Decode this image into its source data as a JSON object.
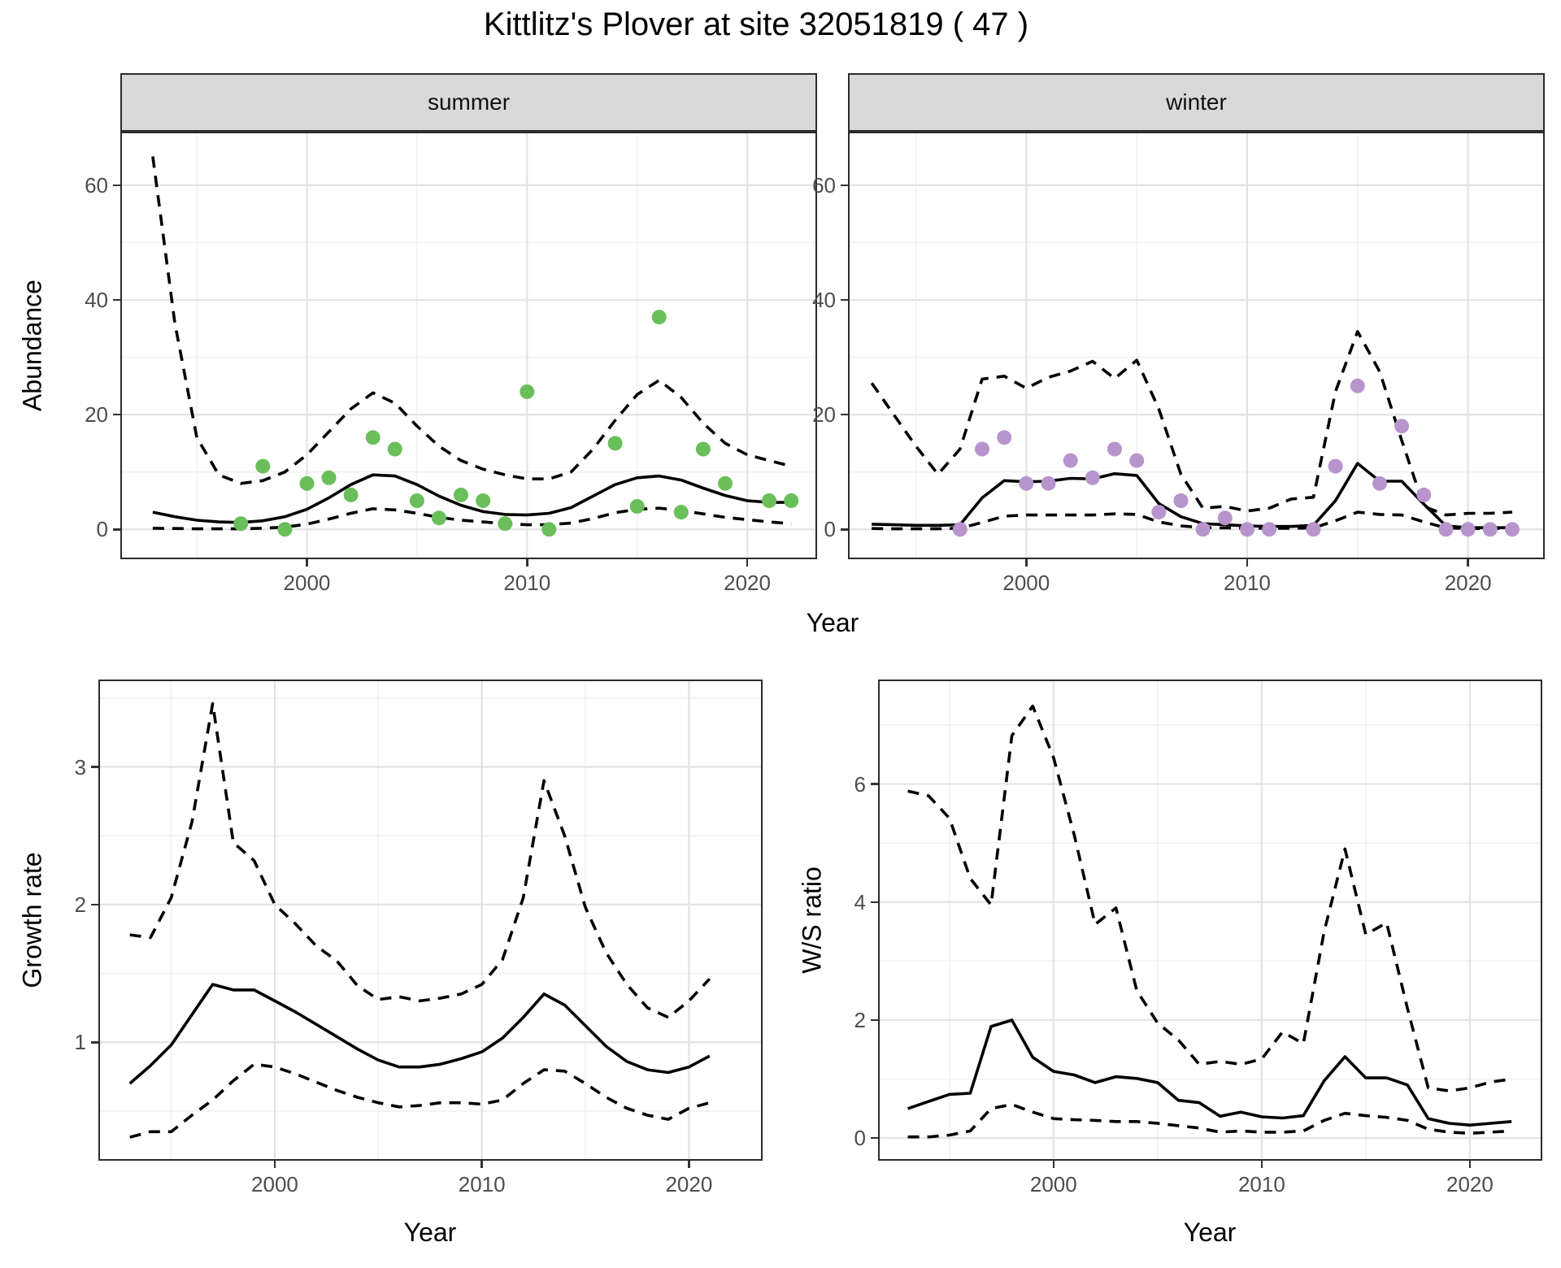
{
  "title": "Kittlitz's Plover at site 32051819 ( 47 )",
  "facets": {
    "summer": "summer",
    "winter": "winter"
  },
  "axes": {
    "abundance_y_label": "Abundance",
    "top_x_label": "Year",
    "growth_y_label": "Growth rate",
    "growth_x_label": "Year",
    "ws_y_label": "W/S ratio",
    "ws_x_label": "Year"
  },
  "colors": {
    "summer_points": "#6abf5a",
    "winter_points": "#b894cd",
    "line": "#000000",
    "strip_bg": "#d9d9d9",
    "axis_text": "#4d4d4d"
  },
  "chart_data": [
    {
      "panel_id": "panel-abundance-summer",
      "type": "line",
      "facet": "summer",
      "ylabel": "Abundance",
      "xlabel": "Year",
      "x_range": [
        1991.6,
        2023.1
      ],
      "y_range": [
        -4.92,
        69.04
      ],
      "x_major": [
        2000,
        2010,
        2020
      ],
      "x_minor": [
        1995,
        2005,
        2015
      ],
      "y_major": [
        0,
        20,
        40,
        60
      ],
      "y_minor": [
        10,
        30,
        50
      ],
      "x_tick_labels": [
        "2000",
        "2010",
        "2020"
      ],
      "y_tick_labels": [
        "0",
        "20",
        "40",
        "60"
      ],
      "series": [
        {
          "name": "upper-ci",
          "style": "dashed",
          "x": [
            1993,
            1994,
            1995,
            1996,
            1997,
            1998,
            1999,
            2000,
            2001,
            2002,
            2003,
            2004,
            2005,
            2006,
            2007,
            2008,
            2009,
            2010,
            2011,
            2012,
            2013,
            2014,
            2015,
            2016,
            2017,
            2018,
            2019,
            2020,
            2021,
            2022
          ],
          "y": [
            65,
            36,
            16,
            9.5,
            8,
            8.5,
            10,
            13,
            17,
            21,
            23.8,
            22,
            18,
            14.5,
            12,
            10.5,
            9.5,
            8.8,
            8.8,
            10,
            14,
            19,
            23.5,
            26,
            23,
            18.5,
            15,
            13,
            12,
            11
          ]
        },
        {
          "name": "mean",
          "style": "solid",
          "x": [
            1993,
            1994,
            1995,
            1996,
            1997,
            1998,
            1999,
            2000,
            2001,
            2002,
            2003,
            2004,
            2005,
            2006,
            2007,
            2008,
            2009,
            2010,
            2011,
            2012,
            2013,
            2014,
            2015,
            2016,
            2017,
            2018,
            2019,
            2020,
            2021,
            2022
          ],
          "y": [
            3,
            2.2,
            1.6,
            1.3,
            1.2,
            1.5,
            2.2,
            3.5,
            5.5,
            7.8,
            9.5,
            9.3,
            7.8,
            5.8,
            4.2,
            3.1,
            2.6,
            2.5,
            2.8,
            3.8,
            5.8,
            7.8,
            9,
            9.3,
            8.6,
            7.2,
            5.9,
            5,
            4.7,
            4.7
          ]
        },
        {
          "name": "lower-ci",
          "style": "dashed",
          "x": [
            1993,
            1994,
            1995,
            1996,
            1997,
            1998,
            1999,
            2000,
            2001,
            2002,
            2003,
            2004,
            2005,
            2006,
            2007,
            2008,
            2009,
            2010,
            2011,
            2012,
            2013,
            2014,
            2015,
            2016,
            2017,
            2018,
            2019,
            2020,
            2021,
            2022
          ],
          "y": [
            0.2,
            0.15,
            0.1,
            0.1,
            0.1,
            0.2,
            0.4,
            0.9,
            1.8,
            2.8,
            3.6,
            3.4,
            2.8,
            2.1,
            1.6,
            1.3,
            1,
            0.8,
            0.8,
            1.1,
            1.9,
            2.9,
            3.5,
            3.7,
            3.3,
            2.7,
            2.1,
            1.7,
            1.3,
            1
          ]
        }
      ],
      "points": {
        "name": "summer-observations",
        "color": "#6abf5a",
        "x": [
          1997,
          1998,
          1999,
          2000,
          2001,
          2002,
          2003,
          2004,
          2005,
          2006,
          2007,
          2008,
          2009,
          2010,
          2011,
          2014,
          2015,
          2016,
          2017,
          2018,
          2019,
          2021,
          2022
        ],
        "y": [
          1,
          11,
          0,
          8,
          9,
          6,
          16,
          14,
          5,
          2,
          6,
          5,
          1,
          24,
          0,
          15,
          4,
          37,
          3,
          14,
          8,
          5,
          5
        ]
      }
    },
    {
      "panel_id": "panel-abundance-winter",
      "type": "line",
      "facet": "winter",
      "ylabel": "Abundance",
      "xlabel": "Year",
      "x_range": [
        1992.0,
        2023.4
      ],
      "y_range": [
        -4.92,
        69.04
      ],
      "x_major": [
        2000,
        2010,
        2020
      ],
      "x_minor": [
        1995,
        2005,
        2015
      ],
      "y_major": [
        0,
        20,
        40,
        60
      ],
      "y_minor": [
        10,
        30,
        50
      ],
      "x_tick_labels": [
        "2000",
        "2010",
        "2020"
      ],
      "y_tick_labels": [
        "0",
        "20",
        "40",
        "60"
      ],
      "series": [
        {
          "name": "upper-ci",
          "style": "dashed",
          "x": [
            1993,
            1994,
            1995,
            1996,
            1997,
            1998,
            1999,
            2000,
            2001,
            2002,
            2003,
            2004,
            2005,
            2006,
            2007,
            2008,
            2009,
            2010,
            2011,
            2012,
            2013,
            2014,
            2015,
            2016,
            2017,
            2018,
            2019,
            2020,
            2021,
            2022
          ],
          "y": [
            25.5,
            20,
            14.5,
            9.6,
            14,
            26.2,
            26.7,
            24.6,
            26.5,
            27.6,
            29.3,
            26.3,
            29.5,
            21,
            9.6,
            3.7,
            4,
            3.2,
            3.7,
            5.3,
            5.6,
            24,
            34.5,
            27.5,
            15.5,
            4,
            2.5,
            2.8,
            2.8,
            3
          ]
        },
        {
          "name": "mean",
          "style": "solid",
          "x": [
            1993,
            1994,
            1995,
            1996,
            1997,
            1998,
            1999,
            2000,
            2001,
            2002,
            2003,
            2004,
            2005,
            2006,
            2007,
            2008,
            2009,
            2010,
            2011,
            2012,
            2013,
            2014,
            2015,
            2016,
            2017,
            2018,
            2019,
            2020,
            2021,
            2022
          ],
          "y": [
            0.9,
            0.8,
            0.7,
            0.7,
            0.8,
            5.5,
            8.5,
            8.3,
            8.4,
            8.9,
            8.8,
            9.7,
            9.4,
            4.5,
            2.2,
            1,
            0.8,
            0.6,
            0.5,
            0.5,
            0.7,
            5,
            11.5,
            8.4,
            8.4,
            4.4,
            0.6,
            0.3,
            0.3,
            0.3
          ]
        },
        {
          "name": "lower-ci",
          "style": "dashed",
          "x": [
            1993,
            1994,
            1995,
            1996,
            1997,
            1998,
            1999,
            2000,
            2001,
            2002,
            2003,
            2004,
            2005,
            2006,
            2007,
            2008,
            2009,
            2010,
            2011,
            2012,
            2013,
            2014,
            2015,
            2016,
            2017,
            2018,
            2019,
            2020,
            2021,
            2022
          ],
          "y": [
            0.15,
            0.1,
            0.1,
            0.1,
            0.2,
            1.2,
            2.3,
            2.5,
            2.5,
            2.5,
            2.5,
            2.7,
            2.6,
            1.3,
            0.6,
            0.3,
            0.25,
            0.2,
            0.2,
            0.2,
            0.25,
            1.5,
            3,
            2.6,
            2.5,
            1.3,
            0.25,
            0.15,
            0.15,
            0.2
          ]
        }
      ],
      "points": {
        "name": "winter-observations",
        "color": "#b894cd",
        "x": [
          1997,
          1998,
          1999,
          2000,
          2001,
          2002,
          2003,
          2004,
          2005,
          2006,
          2007,
          2008,
          2009,
          2010,
          2011,
          2013,
          2014,
          2015,
          2016,
          2017,
          2018,
          2019,
          2020,
          2021,
          2022
        ],
        "y": [
          0,
          14,
          16,
          8,
          8,
          12,
          9,
          14,
          12,
          3,
          5,
          0,
          2,
          0,
          0,
          0,
          11,
          25,
          8,
          18,
          6,
          0,
          0,
          0,
          0
        ]
      }
    },
    {
      "panel_id": "panel-growth",
      "type": "line",
      "facet": null,
      "ylabel": "Growth rate",
      "xlabel": "Year",
      "x_range": [
        1991.56,
        2023.48
      ],
      "y_range": [
        0.151,
        3.623
      ],
      "x_major": [
        2000,
        2010,
        2020
      ],
      "x_minor": [
        1995,
        2005,
        2015
      ],
      "y_major": [
        1,
        2,
        3
      ],
      "y_minor": [
        0.5,
        1.5,
        2.5,
        3.5
      ],
      "x_tick_labels": [
        "2000",
        "2010",
        "2020"
      ],
      "y_tick_labels": [
        "1",
        "2",
        "3"
      ],
      "series": [
        {
          "name": "upper-ci",
          "style": "dashed",
          "x": [
            1993,
            1994,
            1995,
            1996,
            1997,
            1998,
            1999,
            2000,
            2001,
            2002,
            2003,
            2004,
            2005,
            2006,
            2007,
            2008,
            2009,
            2010,
            2011,
            2012,
            2013,
            2014,
            2015,
            2016,
            2017,
            2018,
            2019,
            2020,
            2021
          ],
          "y": [
            1.78,
            1.76,
            2.05,
            2.6,
            3.46,
            2.45,
            2.32,
            2,
            1.86,
            1.7,
            1.59,
            1.41,
            1.31,
            1.33,
            1.3,
            1.32,
            1.35,
            1.42,
            1.6,
            2.05,
            2.9,
            2.5,
            1.98,
            1.65,
            1.42,
            1.25,
            1.18,
            1.3,
            1.46
          ]
        },
        {
          "name": "mean",
          "style": "solid",
          "x": [
            1993,
            1994,
            1995,
            1996,
            1997,
            1998,
            1999,
            2000,
            2001,
            2002,
            2003,
            2004,
            2005,
            2006,
            2007,
            2008,
            2009,
            2010,
            2011,
            2012,
            2013,
            2014,
            2015,
            2016,
            2017,
            2018,
            2019,
            2020,
            2021
          ],
          "y": [
            0.7,
            0.83,
            0.98,
            1.2,
            1.42,
            1.38,
            1.38,
            1.3,
            1.22,
            1.13,
            1.04,
            0.95,
            0.87,
            0.82,
            0.82,
            0.84,
            0.88,
            0.93,
            1.03,
            1.18,
            1.35,
            1.27,
            1.12,
            0.97,
            0.86,
            0.8,
            0.78,
            0.82,
            0.9
          ]
        },
        {
          "name": "lower-ci",
          "style": "dashed",
          "x": [
            1993,
            1994,
            1995,
            1996,
            1997,
            1998,
            1999,
            2000,
            2001,
            2002,
            2003,
            2004,
            2005,
            2006,
            2007,
            2008,
            2009,
            2010,
            2011,
            2012,
            2013,
            2014,
            2015,
            2016,
            2017,
            2018,
            2019,
            2020,
            2021
          ],
          "y": [
            0.31,
            0.35,
            0.35,
            0.47,
            0.58,
            0.72,
            0.84,
            0.82,
            0.77,
            0.71,
            0.65,
            0.6,
            0.56,
            0.53,
            0.54,
            0.56,
            0.56,
            0.55,
            0.58,
            0.7,
            0.8,
            0.79,
            0.7,
            0.6,
            0.52,
            0.47,
            0.44,
            0.52,
            0.56
          ]
        }
      ],
      "points": null
    },
    {
      "panel_id": "panel-ws",
      "type": "line",
      "facet": null,
      "ylabel": "W/S ratio",
      "xlabel": "Year",
      "x_range": [
        1991.65,
        2023.4
      ],
      "y_range": [
        -0.356,
        7.743
      ],
      "x_major": [
        2000,
        2010,
        2020
      ],
      "x_minor": [
        1995,
        2005,
        2015
      ],
      "y_major": [
        0,
        2,
        4,
        6
      ],
      "y_minor": [
        1,
        3,
        5,
        7
      ],
      "x_tick_labels": [
        "2000",
        "2010",
        "2020"
      ],
      "y_tick_labels": [
        "0",
        "2",
        "4",
        "6"
      ],
      "series": [
        {
          "name": "upper-ci",
          "style": "dashed",
          "x": [
            1993,
            1994,
            1995,
            1996,
            1997,
            1998,
            1999,
            2000,
            2001,
            2002,
            2003,
            2004,
            2005,
            2006,
            2007,
            2008,
            2009,
            2010,
            2011,
            2012,
            2013,
            2014,
            2015,
            2016,
            2017,
            2018,
            2019,
            2020,
            2021,
            2022
          ],
          "y": [
            5.88,
            5.8,
            5.42,
            4.4,
            3.95,
            6.82,
            7.32,
            6.45,
            5.13,
            3.62,
            3.9,
            2.5,
            1.95,
            1.66,
            1.25,
            1.3,
            1.25,
            1.34,
            1.8,
            1.6,
            3.5,
            4.9,
            3.45,
            3.65,
            2.2,
            0.85,
            0.8,
            0.85,
            0.95,
            1
          ]
        },
        {
          "name": "mean",
          "style": "solid",
          "x": [
            1993,
            1994,
            1995,
            1996,
            1997,
            1998,
            1999,
            2000,
            2001,
            2002,
            2003,
            2004,
            2005,
            2006,
            2007,
            2008,
            2009,
            2010,
            2011,
            2012,
            2013,
            2014,
            2015,
            2016,
            2017,
            2018,
            2019,
            2020,
            2021,
            2022
          ],
          "y": [
            0.5,
            0.62,
            0.74,
            0.76,
            1.89,
            2,
            1.37,
            1.13,
            1.07,
            0.94,
            1.04,
            1.01,
            0.94,
            0.64,
            0.6,
            0.37,
            0.44,
            0.36,
            0.34,
            0.38,
            0.97,
            1.38,
            1.02,
            1.02,
            0.9,
            0.33,
            0.25,
            0.22,
            0.25,
            0.28
          ]
        },
        {
          "name": "lower-ci",
          "style": "dashed",
          "x": [
            1993,
            1994,
            1995,
            1996,
            1997,
            1998,
            1999,
            2000,
            2001,
            2002,
            2003,
            2004,
            2005,
            2006,
            2007,
            2008,
            2009,
            2010,
            2011,
            2012,
            2013,
            2014,
            2015,
            2016,
            2017,
            2018,
            2019,
            2020,
            2021,
            2022
          ],
          "y": [
            0.02,
            0.02,
            0.05,
            0.12,
            0.5,
            0.57,
            0.44,
            0.33,
            0.31,
            0.3,
            0.28,
            0.28,
            0.25,
            0.21,
            0.17,
            0.1,
            0.12,
            0.1,
            0.1,
            0.12,
            0.3,
            0.42,
            0.38,
            0.35,
            0.3,
            0.15,
            0.1,
            0.08,
            0.1,
            0.12
          ]
        }
      ],
      "points": null
    }
  ]
}
